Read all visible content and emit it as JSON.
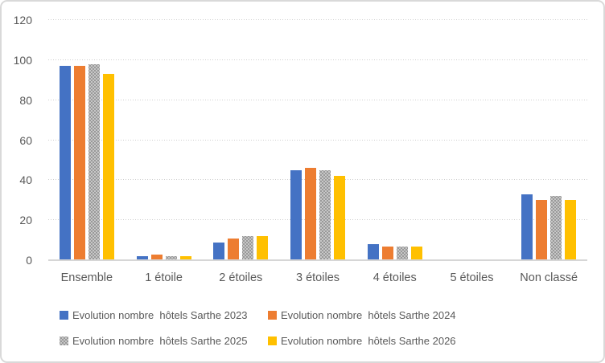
{
  "chart_data": {
    "type": "bar",
    "title": "",
    "xlabel": "",
    "ylabel": "",
    "categories": [
      "Ensemble",
      "1 étoile",
      "2 étoiles",
      "3 étoiles",
      "4 étoiles",
      "5 étoiles",
      "Non classé"
    ],
    "series": [
      {
        "name": "Evolution nombre  hôtels Sarthe 2023",
        "color": "#4472C4",
        "pattern": false,
        "values": [
          97,
          2,
          9,
          45,
          8,
          0,
          33
        ]
      },
      {
        "name": "Evolution nombre  hôtels Sarthe 2024",
        "color": "#ED7D31",
        "pattern": false,
        "values": [
          97,
          3,
          11,
          46,
          7,
          0,
          30
        ]
      },
      {
        "name": "Evolution nombre  hôtels Sarthe 2025",
        "color": "#A5A5A5",
        "pattern": true,
        "values": [
          98,
          2,
          12,
          45,
          7,
          0,
          32
        ]
      },
      {
        "name": "Evolution nombre  hôtels Sarthe 2026",
        "color": "#FFC000",
        "pattern": false,
        "values": [
          93,
          2,
          12,
          42,
          7,
          0,
          30
        ]
      }
    ],
    "ylim": [
      0,
      120
    ],
    "yticks": [
      "0",
      "20",
      "40",
      "60",
      "80",
      "100",
      "120"
    ],
    "grid": true,
    "gridline_style": "dotted",
    "legend_position": "bottom",
    "colors": {
      "grid": "#D9D9D9",
      "axis_text": "#595959",
      "border": "#D9D9D9",
      "background": "#FFFFFF"
    }
  }
}
